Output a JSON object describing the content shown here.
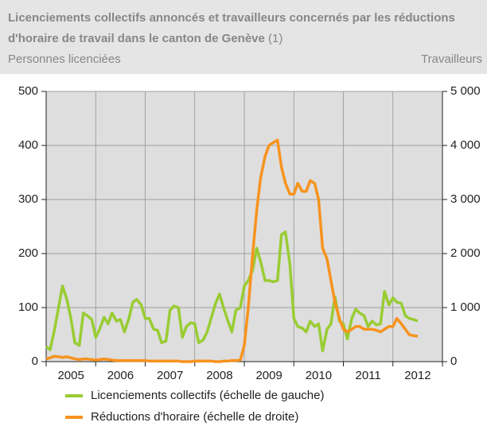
{
  "chart_data": {
    "type": "line",
    "title": "Licenciements collectifs annoncés et travailleurs concernés par les réductions d'horaire de travail dans le canton de Genève",
    "title_note": "(1)",
    "y_label": "Personnes licenciées",
    "y2_label": "Travailleurs",
    "x": [
      2005.0,
      2005.08,
      2005.17,
      2005.25,
      2005.33,
      2005.42,
      2005.5,
      2005.58,
      2005.67,
      2005.75,
      2005.83,
      2005.92,
      2006.0,
      2006.08,
      2006.17,
      2006.25,
      2006.33,
      2006.42,
      2006.5,
      2006.58,
      2006.67,
      2006.75,
      2006.83,
      2006.92,
      2007.0,
      2007.08,
      2007.17,
      2007.25,
      2007.33,
      2007.42,
      2007.5,
      2007.58,
      2007.67,
      2007.75,
      2007.83,
      2007.92,
      2008.0,
      2008.08,
      2008.17,
      2008.25,
      2008.33,
      2008.42,
      2008.5,
      2008.58,
      2008.67,
      2008.75,
      2008.83,
      2008.92,
      2009.0,
      2009.08,
      2009.17,
      2009.25,
      2009.33,
      2009.42,
      2009.5,
      2009.58,
      2009.67,
      2009.75,
      2009.83,
      2009.92,
      2010.0,
      2010.08,
      2010.17,
      2010.25,
      2010.33,
      2010.42,
      2010.5,
      2010.58,
      2010.67,
      2010.75,
      2010.83,
      2010.92,
      2011.0,
      2011.08,
      2011.17,
      2011.25,
      2011.33,
      2011.42,
      2011.5,
      2011.58,
      2011.67,
      2011.75,
      2011.83,
      2011.92,
      2012.0,
      2012.08,
      2012.17,
      2012.25,
      2012.33,
      2012.42,
      2012.5
    ],
    "x_labels": [
      "2005",
      "2006",
      "2007",
      "2008",
      "2009",
      "2010",
      "2011",
      "2012"
    ],
    "xlim": [
      2005,
      2013
    ],
    "xticks": [
      2005,
      2006,
      2007,
      2008,
      2009,
      2010,
      2011,
      2012,
      2013
    ],
    "ylim": [
      0,
      500
    ],
    "yticks": [
      0,
      100,
      200,
      300,
      400,
      500
    ],
    "y2lim": [
      0,
      5000
    ],
    "y2ticks": [
      0,
      {
        "value": 1000,
        "label": "1 000"
      },
      {
        "value": 2000,
        "label": "2 000"
      },
      {
        "value": 3000,
        "label": "3 000"
      },
      {
        "value": 4000,
        "label": "4 000"
      },
      {
        "value": 5000,
        "label": "5 000"
      }
    ],
    "grid": true,
    "legend": "bottom",
    "series": [
      {
        "name": "Licenciements collectifs (échelle de gauche)",
        "color": "#99cc33",
        "values": [
          28,
          22,
          60,
          100,
          140,
          115,
          80,
          35,
          30,
          90,
          85,
          78,
          45,
          60,
          82,
          70,
          90,
          75,
          78,
          55,
          80,
          110,
          115,
          105,
          80,
          80,
          60,
          58,
          35,
          38,
          95,
          103,
          100,
          45,
          65,
          72,
          70,
          35,
          40,
          55,
          80,
          108,
          125,
          100,
          75,
          55,
          95,
          100,
          140,
          150,
          170,
          210,
          185,
          150,
          150,
          148,
          150,
          235,
          240,
          180,
          80,
          65,
          62,
          55,
          75,
          65,
          70,
          20,
          60,
          70,
          120,
          75,
          70,
          42,
          80,
          97,
          90,
          85,
          65,
          75,
          68,
          70,
          130,
          105,
          118,
          110,
          108,
          85,
          80,
          78,
          75
        ]
      },
      {
        "name": "Réductions d'horaire (échelle de droite)",
        "color": "#f7931e",
        "axis": "y2",
        "values": [
          50,
          70,
          100,
          90,
          80,
          90,
          70,
          50,
          40,
          50,
          50,
          40,
          30,
          40,
          50,
          40,
          30,
          20,
          20,
          20,
          20,
          20,
          20,
          20,
          20,
          10,
          10,
          10,
          10,
          10,
          10,
          10,
          10,
          0,
          0,
          0,
          10,
          10,
          10,
          10,
          10,
          0,
          0,
          10,
          10,
          20,
          20,
          30,
          300,
          1000,
          2000,
          2800,
          3400,
          3800,
          4000,
          4050,
          4100,
          3600,
          3300,
          3100,
          3100,
          3300,
          3150,
          3150,
          3350,
          3300,
          3000,
          2100,
          1900,
          1500,
          1100,
          800,
          600,
          550,
          600,
          650,
          650,
          600,
          600,
          600,
          580,
          550,
          600,
          650,
          650,
          800,
          700,
          600,
          500,
          480,
          470
        ]
      }
    ]
  }
}
